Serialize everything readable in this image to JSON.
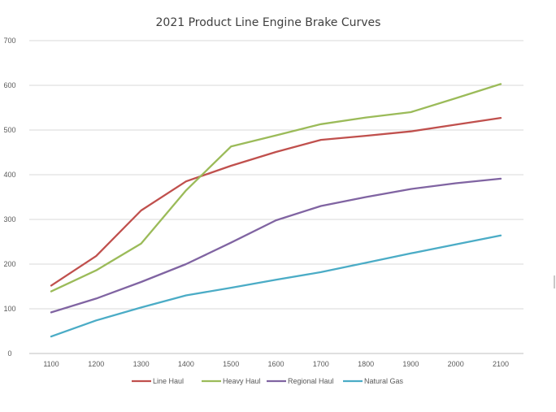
{
  "chart_data": {
    "type": "line",
    "title": "2021 Product Line Engine Brake Curves",
    "xlabel": "",
    "ylabel": "",
    "categories": [
      "1100",
      "1200",
      "1300",
      "1400",
      "1500",
      "1600",
      "1700",
      "1800",
      "1900",
      "2000",
      "2100"
    ],
    "ylim": [
      0,
      700
    ],
    "yticks": [
      0,
      100,
      200,
      300,
      400,
      500,
      600,
      700
    ],
    "ytick_labels": [
      "0",
      "100",
      "200",
      "300",
      "400",
      "500",
      "600",
      "700"
    ],
    "grid": true,
    "legend_position": "bottom",
    "series": [
      {
        "name": "Line Haul",
        "color": "#c0504d",
        "values": [
          152,
          218,
          320,
          385,
          420,
          451,
          478,
          487,
          497,
          512,
          527
        ]
      },
      {
        "name": "Heavy Haul",
        "color": "#9bbb59",
        "values": [
          139,
          186,
          246,
          365,
          463,
          488,
          513,
          528,
          540,
          571,
          603
        ]
      },
      {
        "name": "Regional Haul",
        "color": "#8064a2",
        "values": [
          92,
          123,
          160,
          200,
          248,
          298,
          330,
          350,
          368,
          381,
          391
        ]
      },
      {
        "name": "Natural Gas",
        "color": "#4bacc6",
        "values": [
          38,
          74,
          103,
          130,
          147,
          165,
          182,
          203,
          224,
          244,
          264
        ]
      }
    ]
  }
}
